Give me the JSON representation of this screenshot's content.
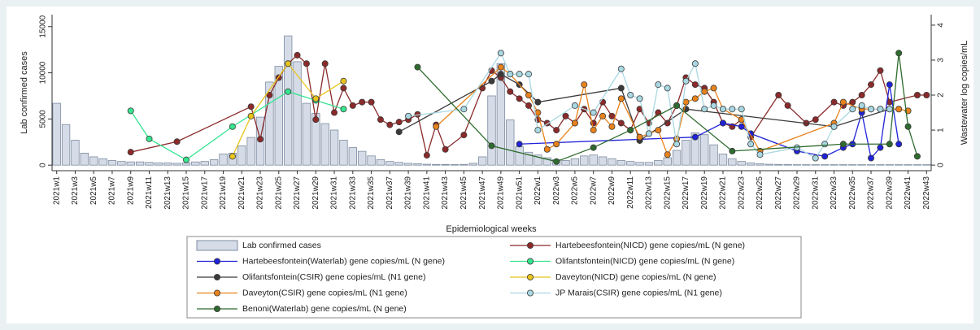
{
  "chart_data": {
    "type": "bar",
    "xlabel": "Epidemiological weeks",
    "ylabel": "Lab confirmed cases",
    "y2label": "Wastewater log copies/mL",
    "x": [
      "2021w1",
      "2021w2",
      "2021w3",
      "2021w4",
      "2021w5",
      "2021w6",
      "2021w7",
      "2021w8",
      "2021w9",
      "2021w10",
      "2021w11",
      "2021w12",
      "2021w13",
      "2021w14",
      "2021w15",
      "2021w16",
      "2021w17",
      "2021w18",
      "2021w19",
      "2021w20",
      "2021w21",
      "2021w22",
      "2021w23",
      "2021w24",
      "2021w25",
      "2021w26",
      "2021w27",
      "2021w28",
      "2021w29",
      "2021w30",
      "2021w31",
      "2021w32",
      "2021w33",
      "2021w34",
      "2021w35",
      "2021w36",
      "2021w37",
      "2021w38",
      "2021w39",
      "2021w40",
      "2021w41",
      "2021w42",
      "2021w43",
      "2021w44",
      "2021w45",
      "2021w46",
      "2021w47",
      "2021w48",
      "2021w49",
      "2021w50",
      "2021w51",
      "2021w52",
      "2022w1",
      "2022w2",
      "2022w3",
      "2022w4",
      "2022w5",
      "2022w6",
      "2022w7",
      "2022w8",
      "2022w9",
      "2022w10",
      "2022w11",
      "2022w12",
      "2022w13",
      "2022w14",
      "2022w15",
      "2022w16",
      "2022w17",
      "2022w18",
      "2022w19",
      "2022w20",
      "2022w21",
      "2022w22",
      "2022w23",
      "2022w24",
      "2022w25",
      "2022w26",
      "2022w27",
      "2022w28",
      "2022w29",
      "2022w30",
      "2022w31",
      "2022w32",
      "2022w33",
      "2022w34",
      "2022w35",
      "2022w36",
      "2022w37",
      "2022w38",
      "2022w39",
      "2022w40",
      "2022w41",
      "2022w42",
      "2022w43"
    ],
    "xticks": [
      "2021w1",
      "2021w3",
      "2021w5",
      "2021w7",
      "2021w9",
      "2021w11",
      "2021w13",
      "2021w15",
      "2021w17",
      "2021w19",
      "2021w21",
      "2021w23",
      "2021w25",
      "2021w27",
      "2021w29",
      "2021w31",
      "2021w33",
      "2021w35",
      "2021w37",
      "2021w39",
      "2021w41",
      "2021w43",
      "2021w45",
      "2021w47",
      "2021w49",
      "2021w51",
      "2022w1",
      "2022w3",
      "2022w5",
      "2022w7",
      "2022w9",
      "2022w11",
      "2022w13",
      "2022w15",
      "2022w17",
      "2022w19",
      "2022w21",
      "2022w23",
      "2022w25",
      "2022w27",
      "2022w29",
      "2022w31",
      "2022w33",
      "2022w35",
      "2022w37",
      "2022w39",
      "2022w41",
      "2022w43"
    ],
    "ylim": [
      -600,
      16300
    ],
    "yticks": [
      0,
      5000,
      10000,
      15000
    ],
    "y2lim": [
      -0.16,
      4.3
    ],
    "y2ticks": [
      0,
      1,
      2,
      3,
      4
    ],
    "series": [
      {
        "name": "Lab confirmed cases",
        "type": "bar",
        "color": "#d5dce7",
        "edgecolor": "#7d8ba0",
        "values": [
          6700,
          4400,
          2700,
          1300,
          900,
          700,
          500,
          400,
          350,
          350,
          300,
          250,
          250,
          200,
          250,
          350,
          400,
          600,
          1200,
          1300,
          2100,
          3000,
          5200,
          9000,
          10700,
          14000,
          11200,
          6700,
          5600,
          4500,
          3800,
          2700,
          1900,
          1500,
          1000,
          600,
          400,
          300,
          200,
          150,
          100,
          80,
          70,
          60,
          80,
          200,
          900,
          7500,
          11000,
          4900,
          2000,
          1400,
          1100,
          800,
          600,
          500,
          700,
          1000,
          1100,
          900,
          700,
          500,
          400,
          300,
          300,
          500,
          800,
          1600,
          2700,
          3500,
          3300,
          2200,
          1200,
          700,
          400,
          250,
          150,
          100,
          80,
          60,
          50,
          50,
          50,
          50,
          50,
          50,
          50,
          50,
          50,
          50,
          50,
          50,
          50,
          50,
          50
        ]
      },
      {
        "name": "Hartebeesfontein(NICD) gene copies/mL (N gene)",
        "type": "line",
        "axis": "y2",
        "color": "#8b2a2a",
        "x": [
          "2021w9",
          "2021w14",
          "2021w22",
          "2021w23",
          "2021w24",
          "2021w25",
          "2021w26",
          "2021w27",
          "2021w28",
          "2021w29",
          "2021w30",
          "2021w31",
          "2021w32",
          "2021w33",
          "2021w34",
          "2021w35",
          "2021w36",
          "2021w37",
          "2021w38",
          "2021w39",
          "2021w40",
          "2021w41",
          "2021w42",
          "2021w43",
          "2021w45",
          "2021w47",
          "2021w48",
          "2021w49",
          "2021w50",
          "2021w51",
          "2021w52",
          "2022w1",
          "2022w2",
          "2022w3",
          "2022w4",
          "2022w5",
          "2022w6",
          "2022w7",
          "2022w8",
          "2022w9",
          "2022w10",
          "2022w11",
          "2022w12",
          "2022w13",
          "2022w14",
          "2022w15",
          "2022w16",
          "2022w17",
          "2022w18",
          "2022w19",
          "2022w20",
          "2022w21",
          "2022w22",
          "2022w23",
          "2022w24",
          "2022w27",
          "2022w28",
          "2022w30",
          "2022w31",
          "2022w33",
          "2022w34",
          "2022w35",
          "2022w36",
          "2022w37",
          "2022w38",
          "2022w39",
          "2022w42",
          "2022w43"
        ],
        "values": [
          0.37,
          0.67,
          1.67,
          0.74,
          2.0,
          2.5,
          2.9,
          3.14,
          2.9,
          1.3,
          2.9,
          1.5,
          2.2,
          1.7,
          1.8,
          1.8,
          1.3,
          1.15,
          1.23,
          1.3,
          1.45,
          0.28,
          1.15,
          0.45,
          0.86,
          2.2,
          2.7,
          2.5,
          2.1,
          1.9,
          1.7,
          1.3,
          1.2,
          1.0,
          1.4,
          1.2,
          1.6,
          1.2,
          1.8,
          1.4,
          1.2,
          1.0,
          1.6,
          1.2,
          1.5,
          1.2,
          1.7,
          2.5,
          2.3,
          2.2,
          1.8,
          1.2,
          1.1,
          1.3,
          0.8,
          2.0,
          1.7,
          1.2,
          1.3,
          1.8,
          1.7,
          1.8,
          2.0,
          2.3,
          2.7,
          1.8,
          2.0,
          2.0
        ]
      },
      {
        "name": "Hartebeesfontein(Waterlab) gene copies/mL (N gene)",
        "type": "line",
        "axis": "y2",
        "color": "#1f22d8",
        "x": [
          "2021w51",
          "2022w18",
          "2022w21",
          "2022w23",
          "2022w24",
          "2022w29",
          "2022w32",
          "2022w34",
          "2022w35",
          "2022w36",
          "2022w37",
          "2022w38",
          "2022w39",
          "2022w40"
        ],
        "values": [
          0.6,
          0.8,
          1.2,
          1.1,
          0.9,
          0.4,
          0.25,
          0.5,
          0.6,
          1.5,
          0.2,
          0.5,
          2.3,
          0.6
        ]
      },
      {
        "name": "Olifantsfontein(NICD) gene copies/mL (N gene)",
        "type": "line",
        "axis": "y2",
        "color": "#35e58f",
        "x": [
          "2021w9",
          "2021w11",
          "2021w15",
          "2021w20",
          "2021w26",
          "2021w29",
          "2021w32"
        ],
        "values": [
          1.55,
          0.75,
          0.15,
          1.1,
          2.1,
          1.85,
          1.6
        ]
      },
      {
        "name": "Olifantsfontein(CSIR) gene copies/mL (N1 gene)",
        "type": "line",
        "axis": "y2",
        "color": "#3a3a3a",
        "x": [
          "2021w38",
          "2021w48",
          "2021w49",
          "2021w51",
          "2022w1",
          "2022w10",
          "2022w12",
          "2022w17",
          "2022w33",
          "2022w39",
          "2022w40"
        ],
        "values": [
          0.95,
          2.4,
          2.6,
          2.3,
          1.8,
          2.2,
          0.7,
          1.6,
          1.1,
          1.6,
          1.6
        ]
      },
      {
        "name": "Daveyton(NICD) gene copies/mL (N gene)",
        "type": "line",
        "axis": "y2",
        "color": "#e8c41c",
        "x": [
          "2021w20",
          "2021w22",
          "2021w26",
          "2021w29",
          "2021w32"
        ],
        "values": [
          0.25,
          1.4,
          2.9,
          1.9,
          2.4
        ]
      },
      {
        "name": "Daveyton(CSIR) gene copies/mL (N1 gene)",
        "type": "line",
        "axis": "y2",
        "color": "#e8821c",
        "x": [
          "2021w42",
          "2021w49",
          "2021w50",
          "2021w52",
          "2022w1",
          "2022w2",
          "2022w3",
          "2022w5",
          "2022w6",
          "2022w7",
          "2022w8",
          "2022w9",
          "2022w10",
          "2022w12",
          "2022w14",
          "2022w15",
          "2022w16",
          "2022w17",
          "2022w18",
          "2022w19",
          "2022w20",
          "2022w21",
          "2022w23",
          "2022w25",
          "2022w33",
          "2022w34",
          "2022w36",
          "2022w37",
          "2022w38",
          "2022w40",
          "2022w41"
        ],
        "values": [
          1.1,
          2.8,
          2.6,
          2.0,
          1.5,
          0.45,
          0.6,
          1.2,
          2.3,
          1.0,
          1.4,
          1.1,
          1.9,
          0.8,
          1.0,
          0.3,
          0.75,
          1.8,
          1.9,
          2.1,
          2.2,
          1.6,
          1.3,
          0.4,
          1.2,
          1.8,
          1.6,
          1.6,
          1.6,
          1.6,
          1.55
        ]
      },
      {
        "name": "JP Marais(CSIR) gene copies/mL (N1 gene)",
        "type": "line",
        "axis": "y2",
        "color": "#a9d8e2",
        "x": [
          "2021w39",
          "2021w45",
          "2021w49",
          "2021w50",
          "2021w51",
          "2021w52",
          "2022w1",
          "2022w5",
          "2022w7",
          "2022w10",
          "2022w11",
          "2022w12",
          "2022w13",
          "2022w14",
          "2022w15",
          "2022w16",
          "2022w17",
          "2022w18",
          "2022w19",
          "2022w20",
          "2022w21",
          "2022w22",
          "2022w23",
          "2022w24",
          "2022w25",
          "2022w29",
          "2022w31",
          "2022w32",
          "2022w33",
          "2022w35",
          "2022w36",
          "2022w37",
          "2022w38",
          "2022w39"
        ],
        "values": [
          1.4,
          1.6,
          3.2,
          2.6,
          2.6,
          2.6,
          1.0,
          1.7,
          1.5,
          2.75,
          2.0,
          1.9,
          0.9,
          2.3,
          2.2,
          0.6,
          2.4,
          2.9,
          1.6,
          1.7,
          1.6,
          1.6,
          1.6,
          0.6,
          0.3,
          0.5,
          0.2,
          0.6,
          1.1,
          1.6,
          1.7,
          1.6,
          1.6,
          1.6
        ]
      },
      {
        "name": "Benoni(Waterlab) gene copies/mL (N gene)",
        "type": "line",
        "axis": "y2",
        "color": "#2e6b2e",
        "x": [
          "2021w40",
          "2021w48",
          "2022w3",
          "2022w7",
          "2022w11",
          "2022w16",
          "2022w22",
          "2022w34",
          "2022w39",
          "2022w40",
          "2022w41",
          "2022w42"
        ],
        "values": [
          2.8,
          0.55,
          0.1,
          0.5,
          1.0,
          1.7,
          0.4,
          0.6,
          0.6,
          3.2,
          1.1,
          0.25
        ]
      }
    ]
  }
}
